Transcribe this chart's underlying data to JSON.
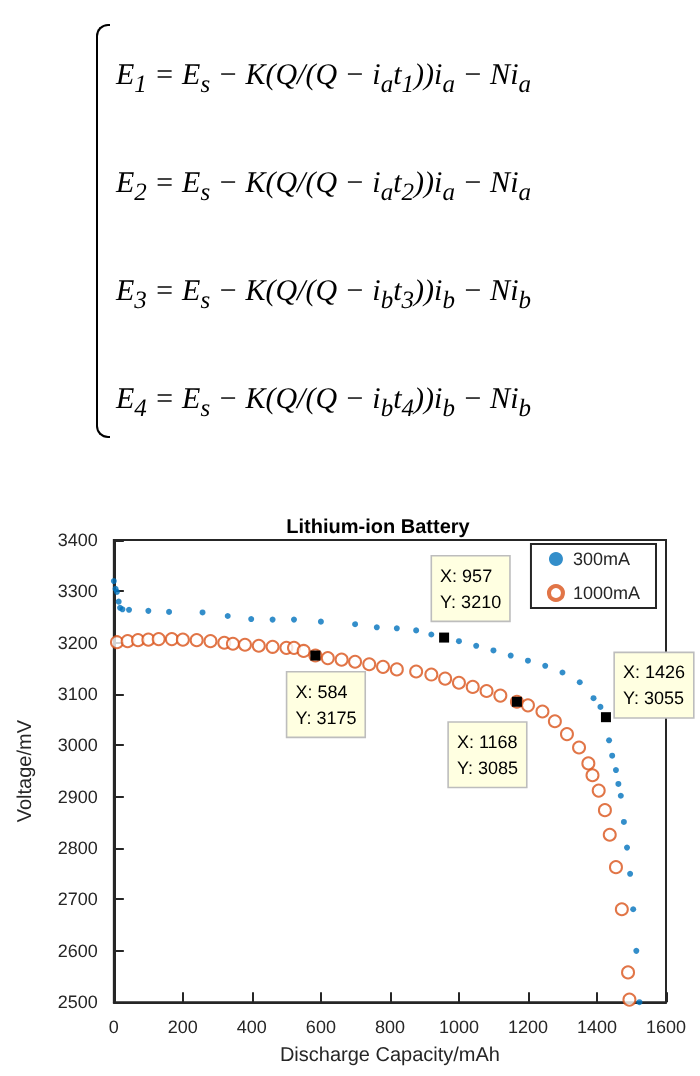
{
  "chart_data": {
    "type": "scatter",
    "title": "Lithium-ion Battery",
    "xlabel": "Discharge Capacity/mAh",
    "ylabel": "Voltage/mV",
    "annotations": [
      "E$_{1}$ = E$_{s}$ − K(Q/(Q − i$_{a}$t$_{1}$))i$_{a}$ − Ni$_{a}$",
      "E$_{2}$ = E$_{s}$ − K(Q/(Q − i$_{a}$t$_{2}$))i$_{a}$ − Ni$_{a}$",
      "E$_{3}$ = E$_{s}$ − K(Q/(Q − i$_{b}$t$_{3}$))i$_{b}$ − Ni$_{b}$",
      "E$_{4}$ = E$_{s}$ − K(Q/(Q − i$_{b}$t$_{4}$))i$_{b}$ − Ni$_{b}$",
      {
        "text": "X: 584\nY: 3175",
        "x": 584,
        "y": 3175
      },
      {
        "text": "X: 957\nY: 3210",
        "x": 957,
        "y": 3210
      },
      {
        "text": "X: 1168\nY: 3085",
        "x": 1168,
        "y": 3085
      },
      {
        "text": "X: 1426\nY: 3055",
        "x": 1426,
        "y": 3055
      }
    ],
    "series": [
      {
        "name": "300mA",
        "color": "#0072bd",
        "marker": "circle",
        "x": [
          0,
          5,
          9,
          14,
          18,
          25,
          44,
          100,
          160,
          257,
          330,
          398,
          460,
          522,
          600,
          699,
          762,
          820,
          876,
          920,
          957,
          1000,
          1050,
          1100,
          1150,
          1200,
          1250,
          1300,
          1350,
          1390,
          1410,
          1426,
          1435,
          1444,
          1455,
          1462,
          1469,
          1478,
          1487,
          1496,
          1505,
          1514,
          1523
        ],
        "values": [
          3320,
          3305,
          3299,
          3280,
          3268,
          3265,
          3264,
          3262,
          3260,
          3259,
          3252,
          3246,
          3245,
          3245,
          3241,
          3236,
          3230,
          3228,
          3224,
          3216,
          3210,
          3203,
          3194,
          3185,
          3175,
          3165,
          3155,
          3142,
          3123,
          3092,
          3075,
          3056,
          3010,
          2980,
          2952,
          2925,
          2902,
          2851,
          2801,
          2750,
          2681,
          2600,
          2500
        ]
      },
      {
        "name": "1000mA",
        "color": "#d95319",
        "marker": "circle",
        "x": [
          9,
          40,
          70,
          100,
          130,
          168,
          200,
          240,
          280,
          320,
          345,
          380,
          420,
          460,
          500,
          522,
          550,
          584,
          620,
          660,
          699,
          740,
          780,
          820,
          876,
          920,
          960,
          1000,
          1040,
          1080,
          1120,
          1168,
          1200,
          1242,
          1278,
          1313,
          1348,
          1375,
          1387,
          1405,
          1423,
          1437,
          1455,
          1472,
          1490,
          1494
        ],
        "values": [
          3201,
          3203,
          3205,
          3206,
          3207,
          3207,
          3206,
          3205,
          3203,
          3200,
          3198,
          3196,
          3194,
          3192,
          3190,
          3190,
          3184,
          3175,
          3170,
          3167,
          3163,
          3158,
          3153,
          3148,
          3144,
          3138,
          3130,
          3122,
          3114,
          3106,
          3097,
          3085,
          3078,
          3066,
          3047,
          3022,
          2996,
          2965,
          2942,
          2912,
          2874,
          2826,
          2763,
          2681,
          2558,
          2505
        ]
      }
    ],
    "xlim": [
      0,
      1600
    ],
    "xticks": [
      0,
      200,
      400,
      600,
      800,
      1000,
      1200,
      1400,
      1600
    ],
    "ylim": [
      2500,
      3400
    ],
    "yticks": [
      2500,
      2600,
      2700,
      2800,
      2900,
      3000,
      3100,
      3200,
      3300,
      3400
    ],
    "grid": false,
    "legend": "top right"
  }
}
